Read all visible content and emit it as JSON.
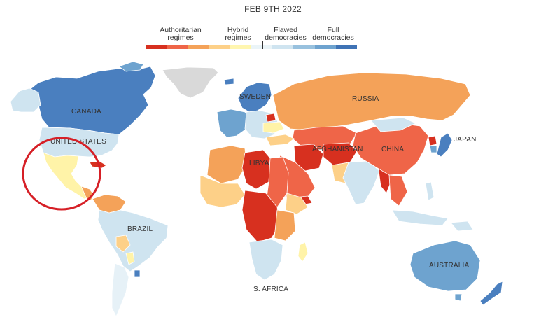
{
  "header": {
    "date": "FEB 9TH 2022"
  },
  "legend": {
    "categories": [
      {
        "label": "Authoritarian regimes",
        "line1": "Authoritarian",
        "line2": "regimes"
      },
      {
        "label": "Hybrid regimes",
        "line1": "Hybrid",
        "line2": "regimes"
      },
      {
        "label": "Flawed democracies",
        "line1": "Flawed",
        "line2": "democracies"
      },
      {
        "label": "Full democracies",
        "line1": "Full",
        "line2": "democracies"
      }
    ],
    "scale_colors": [
      "#d7301f",
      "#ef6548",
      "#f4a259",
      "#fdd088",
      "#fff6b0",
      "#eaf4f8",
      "#cfe4f0",
      "#98c1de",
      "#6ea3cf",
      "#3f73b5"
    ]
  },
  "map": {
    "labels": {
      "canada": "CANADA",
      "united_states": "UNITED STATES",
      "brazil": "BRAZIL",
      "sweden": "SWEDEN",
      "russia": "RUSSIA",
      "libya": "LIBYA",
      "afghanistan": "AFGHANISTAN",
      "china": "CHINA",
      "japan": "JAPAN",
      "australia": "AUSTRALIA",
      "s_africa": "S. AFRICA"
    },
    "annotation": {
      "shape": "circle",
      "color": "#d61f26",
      "target": "Mexico and Central America"
    },
    "colors": {
      "full": "#4a7fbf",
      "full_light": "#6ea3cf",
      "flawed": "#cfe4f0",
      "flawed_light": "#e6f1f7",
      "hybrid": "#fdd088",
      "hybrid_light": "#fff3a8",
      "auth": "#d7301f",
      "auth_mid": "#ef6548",
      "auth_light": "#f4a259",
      "no_data": "#d9d9d9"
    }
  }
}
